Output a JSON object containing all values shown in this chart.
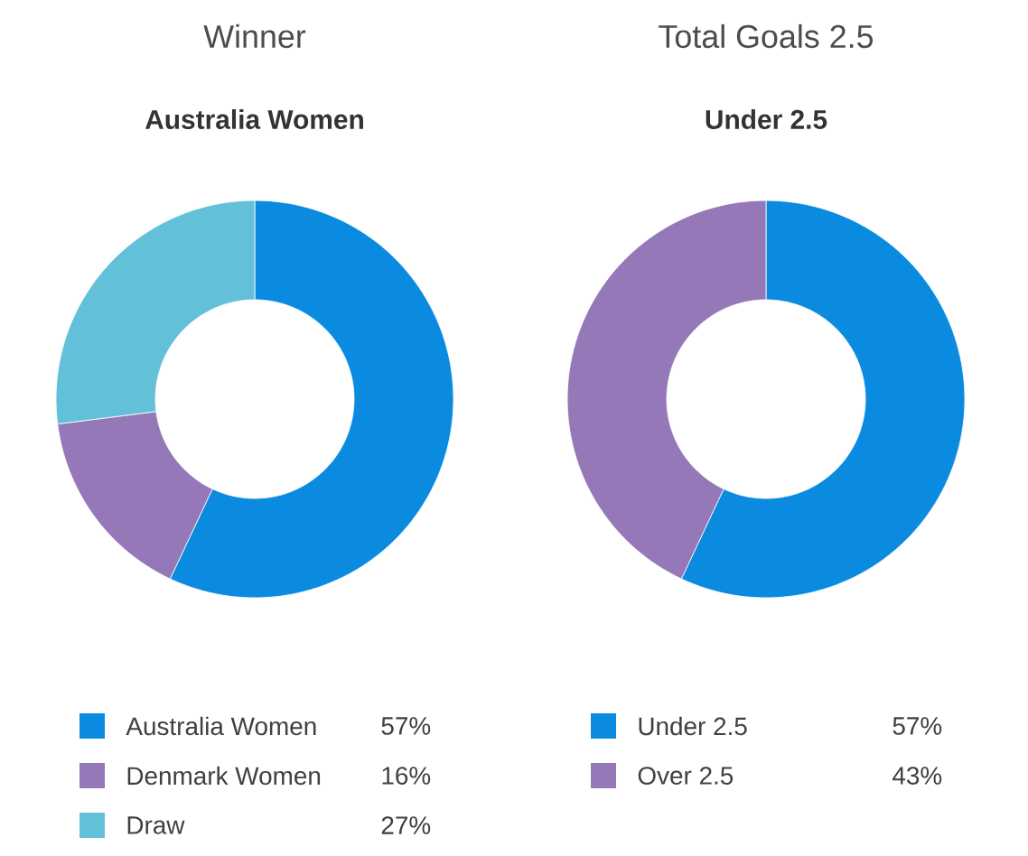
{
  "chart_data": [
    {
      "type": "donut",
      "title": "Winner",
      "subtitle": "Australia Women",
      "categories": [
        "Australia Women",
        "Denmark Women",
        "Draw"
      ],
      "values": [
        57,
        16,
        27
      ],
      "value_labels": [
        "57%",
        "16%",
        "27%"
      ],
      "colors": [
        "#0a8be0",
        "#9478b8",
        "#62c0d8"
      ],
      "legend": "bottom"
    },
    {
      "type": "donut",
      "title": "Total Goals 2.5",
      "subtitle": "Under 2.5",
      "categories": [
        "Under 2.5",
        "Over 2.5"
      ],
      "values": [
        57,
        43
      ],
      "value_labels": [
        "57%",
        "43%"
      ],
      "colors": [
        "#0a8be0",
        "#9478b8"
      ],
      "legend": "bottom"
    }
  ]
}
